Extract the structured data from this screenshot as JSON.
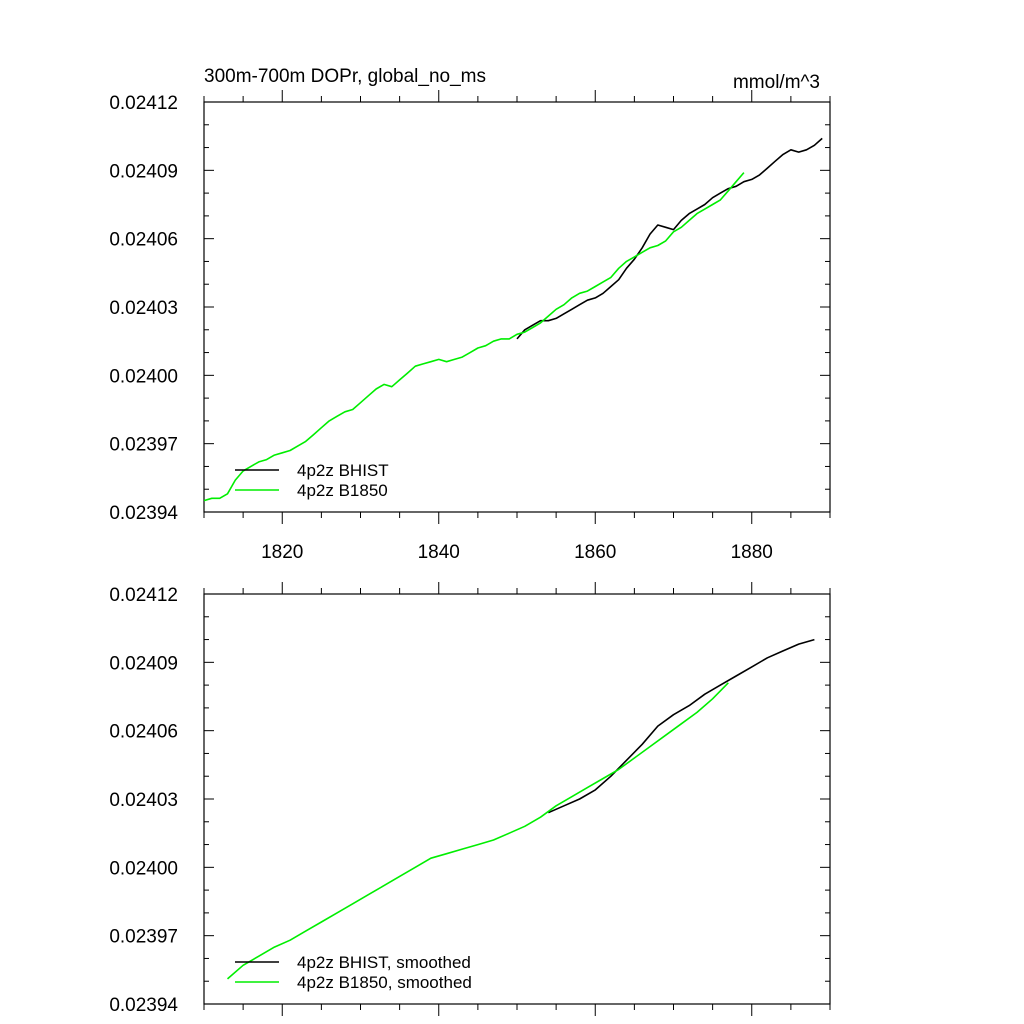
{
  "chart_data": [
    {
      "type": "line",
      "title": "300m-700m DOPr, global_no_ms",
      "units_label": "mmol/m^3",
      "xlim": [
        1810,
        1890
      ],
      "ylim": [
        0.02394,
        0.02412
      ],
      "y_ticks": [
        "0.02412",
        "0.02409",
        "0.02406",
        "0.02403",
        "0.02400",
        "0.02397",
        "0.02394"
      ],
      "y_tick_values": [
        0.02412,
        0.02409,
        0.02406,
        0.02403,
        0.024,
        0.02397,
        0.02394
      ],
      "x_ticks": [
        "1820",
        "1840",
        "1860",
        "1880"
      ],
      "x_tick_values": [
        1820,
        1840,
        1860,
        1880
      ],
      "show_x_tick_labels": true,
      "series": [
        {
          "name": "4p2z BHIST",
          "color": "#000000",
          "x": [
            1850,
            1851,
            1852,
            1853,
            1854,
            1855,
            1856,
            1857,
            1858,
            1859,
            1860,
            1861,
            1862,
            1863,
            1864,
            1865,
            1866,
            1867,
            1868,
            1869,
            1870,
            1871,
            1872,
            1873,
            1874,
            1875,
            1876,
            1877,
            1878,
            1879,
            1880,
            1881,
            1882,
            1883,
            1884,
            1885,
            1886,
            1887,
            1888,
            1889
          ],
          "y": [
            0.024016,
            0.02402,
            0.024022,
            0.024024,
            0.024024,
            0.024025,
            0.024027,
            0.024029,
            0.024031,
            0.024033,
            0.024034,
            0.024036,
            0.024039,
            0.024042,
            0.024047,
            0.024051,
            0.024056,
            0.024062,
            0.024066,
            0.024065,
            0.024064,
            0.024068,
            0.024071,
            0.024073,
            0.024075,
            0.024078,
            0.02408,
            0.024082,
            0.024083,
            0.024085,
            0.024086,
            0.024088,
            0.024091,
            0.024094,
            0.024097,
            0.024099,
            0.024098,
            0.024099,
            0.024101,
            0.024104
          ]
        },
        {
          "name": "4p2z B1850",
          "color": "#00ee00",
          "x": [
            1810,
            1811,
            1812,
            1813,
            1814,
            1815,
            1816,
            1817,
            1818,
            1819,
            1820,
            1821,
            1822,
            1823,
            1824,
            1825,
            1826,
            1827,
            1828,
            1829,
            1830,
            1831,
            1832,
            1833,
            1834,
            1835,
            1836,
            1837,
            1838,
            1839,
            1840,
            1841,
            1842,
            1843,
            1844,
            1845,
            1846,
            1847,
            1848,
            1849,
            1850,
            1851,
            1852,
            1853,
            1854,
            1855,
            1856,
            1857,
            1858,
            1859,
            1860,
            1861,
            1862,
            1863,
            1864,
            1865,
            1866,
            1867,
            1868,
            1869,
            1870,
            1871,
            1872,
            1873,
            1874,
            1875,
            1876,
            1877,
            1878,
            1879
          ],
          "y": [
            0.023945,
            0.023946,
            0.023946,
            0.023948,
            0.023954,
            0.023958,
            0.02396,
            0.023962,
            0.023963,
            0.023965,
            0.023966,
            0.023967,
            0.023969,
            0.023971,
            0.023974,
            0.023977,
            0.02398,
            0.023982,
            0.023984,
            0.023985,
            0.023988,
            0.023991,
            0.023994,
            0.023996,
            0.023995,
            0.023998,
            0.024001,
            0.024004,
            0.024005,
            0.024006,
            0.024007,
            0.024006,
            0.024007,
            0.024008,
            0.02401,
            0.024012,
            0.024013,
            0.024015,
            0.024016,
            0.024016,
            0.024018,
            0.024019,
            0.024021,
            0.024023,
            0.024026,
            0.024029,
            0.024031,
            0.024034,
            0.024036,
            0.024037,
            0.024039,
            0.024041,
            0.024043,
            0.024047,
            0.02405,
            0.024052,
            0.024054,
            0.024056,
            0.024057,
            0.024059,
            0.024063,
            0.024065,
            0.024068,
            0.024071,
            0.024073,
            0.024075,
            0.024077,
            0.024081,
            0.024085,
            0.024089
          ]
        }
      ]
    },
    {
      "type": "line",
      "title": "",
      "units_label": "",
      "xlim": [
        1810,
        1890
      ],
      "ylim": [
        0.02394,
        0.02412
      ],
      "y_ticks": [
        "0.02412",
        "0.02409",
        "0.02406",
        "0.02403",
        "0.02400",
        "0.02397",
        "0.02394"
      ],
      "y_tick_values": [
        0.02412,
        0.02409,
        0.02406,
        0.02403,
        0.024,
        0.02397,
        0.02394
      ],
      "x_ticks": [
        "1820",
        "1840",
        "1860",
        "1880"
      ],
      "x_tick_values": [
        1820,
        1840,
        1860,
        1880
      ],
      "show_x_tick_labels": false,
      "series": [
        {
          "name": "4p2z BHIST, smoothed",
          "color": "#000000",
          "x": [
            1854,
            1856,
            1858,
            1860,
            1862,
            1864,
            1866,
            1868,
            1870,
            1872,
            1874,
            1876,
            1878,
            1880,
            1882,
            1884,
            1886,
            1888
          ],
          "y": [
            0.024024,
            0.024027,
            0.02403,
            0.024034,
            0.02404,
            0.024047,
            0.024054,
            0.024062,
            0.024067,
            0.024071,
            0.024076,
            0.02408,
            0.024084,
            0.024088,
            0.024092,
            0.024095,
            0.024098,
            0.0241
          ]
        },
        {
          "name": "4p2z B1850, smoothed",
          "color": "#00ee00",
          "x": [
            1813,
            1815,
            1817,
            1819,
            1821,
            1823,
            1825,
            1827,
            1829,
            1831,
            1833,
            1835,
            1837,
            1839,
            1841,
            1843,
            1845,
            1847,
            1849,
            1851,
            1853,
            1855,
            1857,
            1859,
            1861,
            1863,
            1865,
            1867,
            1869,
            1871,
            1873,
            1875,
            1877
          ],
          "y": [
            0.023951,
            0.023957,
            0.023961,
            0.023965,
            0.023968,
            0.023972,
            0.023976,
            0.02398,
            0.023984,
            0.023988,
            0.023992,
            0.023996,
            0.024,
            0.024004,
            0.024006,
            0.024008,
            0.02401,
            0.024012,
            0.024015,
            0.024018,
            0.024022,
            0.024027,
            0.024031,
            0.024035,
            0.024039,
            0.024043,
            0.024048,
            0.024053,
            0.024058,
            0.024063,
            0.024068,
            0.024074,
            0.024081
          ]
        }
      ]
    }
  ]
}
